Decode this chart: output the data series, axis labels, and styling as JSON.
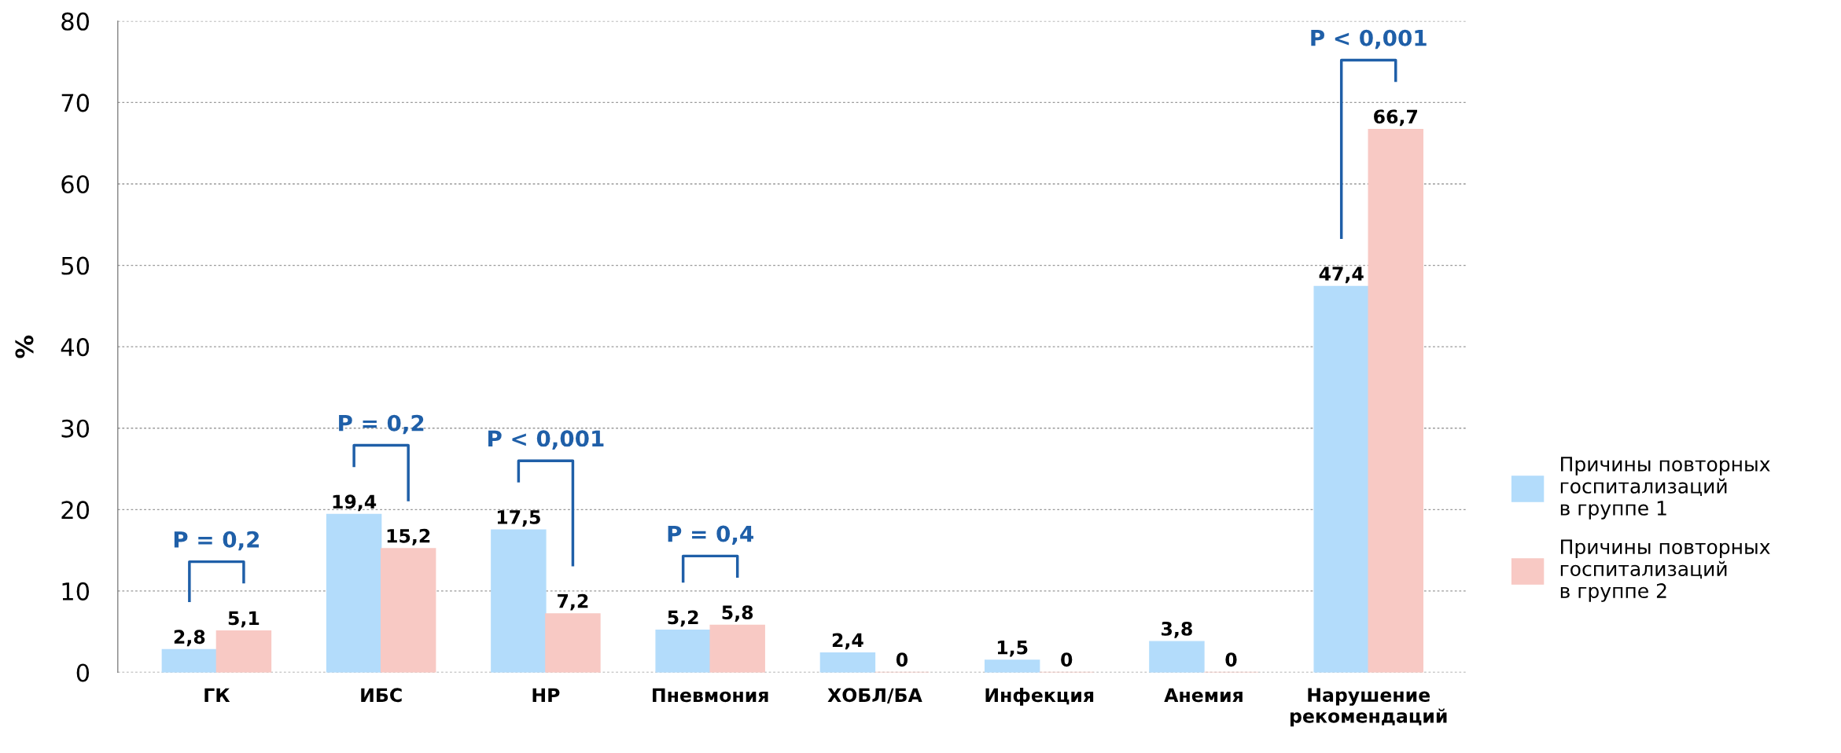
{
  "chart_data": {
    "type": "bar",
    "ylabel": "%",
    "categories": [
      "ГК",
      "ИБС",
      "НР",
      "Пневмония",
      "ХОБЛ/БА",
      "Инфекция",
      "Анемия",
      "Нарушение\nрекомендаций"
    ],
    "series": [
      {
        "name": "Причины повторных\nгоспитализаций\nв группе 1",
        "color": "#b3dcfb",
        "values": [
          2.8,
          19.4,
          17.5,
          5.2,
          2.4,
          1.5,
          3.8,
          47.4
        ],
        "value_labels": [
          "2,8",
          "19,4",
          "17,5",
          "5,2",
          "2,4",
          "1,5",
          "3,8",
          "47,4"
        ]
      },
      {
        "name": "Причины повторных\nгоспитализаций\nв группе 2",
        "color": "#f8c9c4",
        "values": [
          5.1,
          15.2,
          7.2,
          5.8,
          0,
          0,
          0,
          66.7
        ],
        "value_labels": [
          "5,1",
          "15,2",
          "7,2",
          "5,8",
          "0",
          "0",
          "0",
          "66,7"
        ]
      }
    ],
    "ylim": [
      0,
      80
    ],
    "yticks": [
      0,
      10,
      20,
      30,
      40,
      50,
      60,
      70,
      80
    ],
    "grid": "y",
    "legend": "right",
    "annotations": [
      "P = 0,2",
      "P = 0,2",
      "P < 0,001",
      "P = 0,4",
      "P < 0,001"
    ]
  }
}
